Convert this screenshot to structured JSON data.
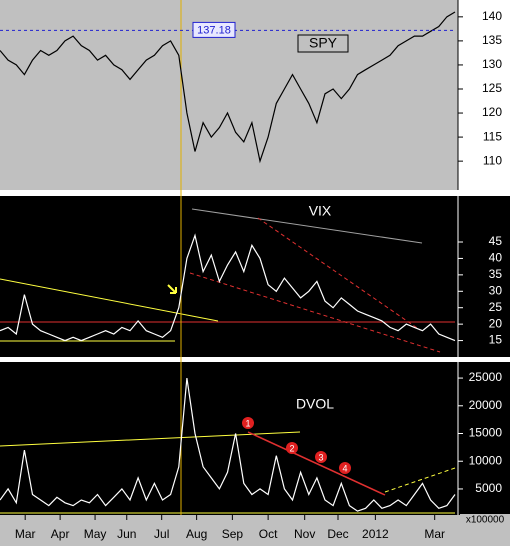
{
  "chart_data": [
    {
      "type": "line",
      "title": "SPY",
      "series": [
        {
          "name": "SPY",
          "color": "#000000",
          "values": [
            133,
            131,
            130,
            128,
            131,
            133,
            132,
            133,
            135,
            136,
            134,
            133,
            131,
            132,
            130,
            129,
            127,
            129,
            131,
            132,
            134,
            135,
            132,
            120,
            112,
            118,
            115,
            117,
            120,
            116,
            114,
            118,
            110,
            115,
            122,
            125,
            128,
            125,
            122,
            118,
            124,
            125,
            123,
            125,
            128,
            129,
            130,
            131,
            132,
            134,
            135,
            136,
            136,
            137,
            138,
            140,
            141
          ]
        }
      ],
      "reference_line": 137.18,
      "xlim": [
        0,
        56
      ],
      "ylim": [
        104,
        143.5
      ],
      "yticks": [
        110,
        115,
        120,
        125,
        130,
        135,
        140
      ]
    },
    {
      "type": "line",
      "title": "VIX",
      "series": [
        {
          "name": "VIX",
          "color": "#ffffff",
          "values": [
            18,
            19,
            17,
            29,
            20,
            18,
            17,
            16,
            15,
            16,
            15,
            16,
            17,
            18,
            17,
            19,
            18,
            21,
            18,
            17,
            16,
            18,
            25,
            40,
            47,
            36,
            41,
            33,
            38,
            42,
            36,
            44,
            40,
            32,
            30,
            34,
            31,
            28,
            30,
            33,
            27,
            25,
            28,
            26,
            24,
            23,
            22,
            21,
            19,
            18,
            20,
            19,
            18,
            20,
            17,
            16,
            15
          ]
        }
      ],
      "xlim": [
        0,
        56
      ],
      "ylim": [
        10,
        59
      ],
      "yticks": [
        15,
        20,
        25,
        30,
        35,
        40,
        45
      ]
    },
    {
      "type": "line",
      "title": "DVOL",
      "series": [
        {
          "name": "DVOL",
          "color": "#ffffff",
          "values": [
            3000,
            5000,
            2500,
            12000,
            4000,
            3000,
            2000,
            3500,
            2500,
            2000,
            3000,
            2500,
            4000,
            2000,
            3500,
            5000,
            3000,
            7000,
            3000,
            6000,
            3000,
            4000,
            9000,
            25000,
            15000,
            9000,
            7000,
            5000,
            8000,
            15000,
            6000,
            4000,
            5000,
            4000,
            11000,
            5000,
            3000,
            8000,
            4000,
            7000,
            3000,
            2000,
            6000,
            2000,
            1000,
            1500,
            3000,
            1500,
            2000,
            3000,
            2000,
            4000,
            6000,
            3000,
            1500,
            2000,
            4000
          ]
        }
      ],
      "annotations": [
        "1",
        "2",
        "3",
        "4"
      ],
      "unit_label": "x100000",
      "xlim": [
        0,
        56
      ],
      "ylim": [
        300,
        27900
      ],
      "yticks": [
        5000,
        10000,
        15000,
        20000,
        25000
      ],
      "xticks": [
        {
          "value": 3.1,
          "label": "Mar"
        },
        {
          "value": 7.4,
          "label": "Apr"
        },
        {
          "value": 11.7,
          "label": "May"
        },
        {
          "value": 15.6,
          "label": "Jun"
        },
        {
          "value": 19.9,
          "label": "Jul"
        },
        {
          "value": 24.2,
          "label": "Aug"
        },
        {
          "value": 28.6,
          "label": "Sep"
        },
        {
          "value": 33,
          "label": "Oct"
        },
        {
          "value": 37.5,
          "label": "Nov"
        },
        {
          "value": 41.6,
          "label": "Dec"
        },
        {
          "value": 46.2,
          "label": "2012"
        },
        {
          "value": 53.5,
          "label": "Mar"
        }
      ]
    }
  ]
}
